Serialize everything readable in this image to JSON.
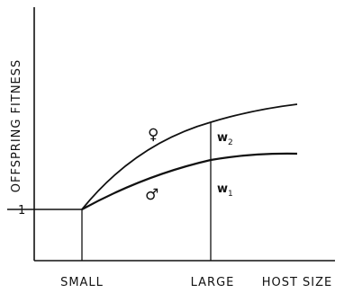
{
  "chart_data": {
    "type": "line",
    "title": "",
    "xlabel": "HOST SIZE",
    "ylabel": "OFFSPRING FITNESS",
    "x_tick_labels": [
      "SMALL",
      "LARGE"
    ],
    "y_tick_labels": [
      "1"
    ],
    "grid": false,
    "legend": "none",
    "series": [
      {
        "name": "♀",
        "description": "female",
        "points": [
          [
            0,
            1.0
          ],
          [
            0.36,
            1.9
          ],
          [
            1.0,
            2.9
          ],
          [
            1.3,
            3.05
          ]
        ]
      },
      {
        "name": "♂",
        "description": "male",
        "points": [
          [
            0,
            1.0
          ],
          [
            0.36,
            1.48
          ],
          [
            1.0,
            2.06
          ],
          [
            1.3,
            2.16
          ]
        ]
      },
      {
        "name": "baseline",
        "points": [
          [
            -0.6,
            1.0
          ],
          [
            0,
            1.0
          ]
        ]
      }
    ],
    "annotations": [
      {
        "text": "w",
        "sub": "2",
        "between": "female and male curves at LARGE"
      },
      {
        "text": "w",
        "sub": "1",
        "between": "male curve and x-axis at LARGE"
      }
    ]
  }
}
